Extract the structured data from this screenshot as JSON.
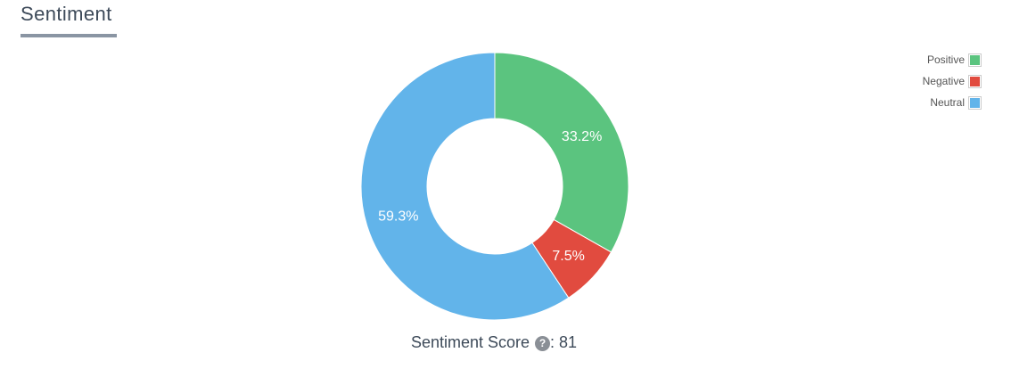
{
  "header": {
    "title": "Sentiment"
  },
  "chart_data": {
    "type": "pie",
    "donut": true,
    "slices": [
      {
        "label": "Positive",
        "value": 33.2,
        "display": "33.2%",
        "color": "#5bc47f"
      },
      {
        "label": "Negative",
        "value": 7.5,
        "display": "7.5%",
        "color": "#e14b3f"
      },
      {
        "label": "Neutral",
        "value": 59.3,
        "display": "59.3%",
        "color": "#62b4ea"
      }
    ],
    "legend_position": "top-right"
  },
  "score": {
    "label": "Sentiment Score",
    "help_icon": "question-circle-icon",
    "value": ": 81"
  }
}
